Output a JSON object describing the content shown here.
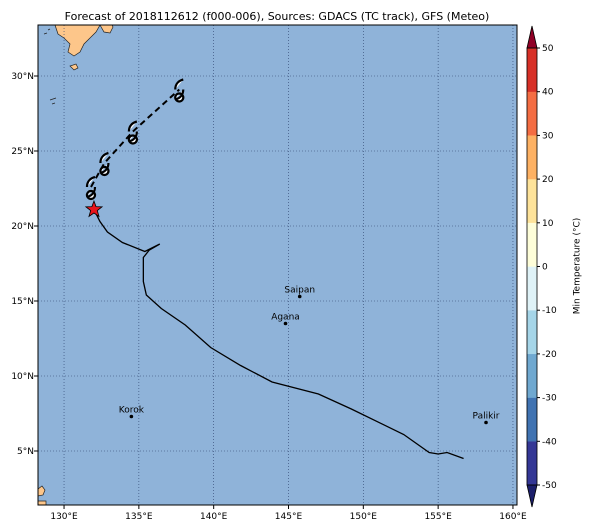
{
  "title": "Forecast of 2018112612 (f000-006), Sources: GDACS (TC track), GFS (Meteo)",
  "map": {
    "lonlim": [
      128.26,
      160.27
    ],
    "latlim": [
      1.4,
      33.4
    ],
    "lonticks": [
      {
        "value": 130,
        "label": "130°E"
      },
      {
        "value": 135,
        "label": "135°E"
      },
      {
        "value": 140,
        "label": "140°E"
      },
      {
        "value": 145,
        "label": "145°E"
      },
      {
        "value": 150,
        "label": "150°E"
      },
      {
        "value": 155,
        "label": "155°E"
      },
      {
        "value": 160,
        "label": "160°E"
      }
    ],
    "latticks": [
      {
        "value": 5,
        "label": "5°N"
      },
      {
        "value": 10,
        "label": "10°N"
      },
      {
        "value": 15,
        "label": "15°N"
      },
      {
        "value": 20,
        "label": "20°N"
      },
      {
        "value": 25,
        "label": "25°N"
      },
      {
        "value": 30,
        "label": "30°N"
      }
    ],
    "ocean_color": "#8fb3d9",
    "land_color": "#fdc68a",
    "grid": true
  },
  "track": {
    "lon": [
      132.0,
      132.4,
      132.9,
      133.9,
      135.4,
      136.4,
      135.7,
      135.3,
      135.3,
      135.5,
      136.5,
      138.1,
      139.8,
      141.8,
      143.9,
      147.0,
      149.2,
      152.7,
      154.4,
      155.0,
      155.6,
      156.7
    ],
    "lat": [
      21.1,
      20.3,
      19.6,
      18.9,
      18.3,
      18.8,
      18.4,
      17.9,
      16.3,
      15.4,
      14.5,
      13.4,
      11.9,
      10.7,
      9.6,
      8.8,
      7.8,
      6.1,
      4.9,
      4.8,
      4.9,
      4.5
    ]
  },
  "current_position": {
    "lon": 132.0,
    "lat": 21.1
  },
  "forecast": {
    "lon": [
      131.8,
      132.7,
      134.6,
      137.7
    ],
    "lat": [
      22.6,
      24.2,
      26.3,
      29.1
    ]
  },
  "places": [
    {
      "name": "Saipan",
      "lon": 145.75,
      "lat": 15.3
    },
    {
      "name": "Agana",
      "lon": 144.8,
      "lat": 13.5
    },
    {
      "name": "Korok",
      "lon": 134.5,
      "lat": 7.3
    },
    {
      "name": "Palikir",
      "lon": 158.2,
      "lat": 6.9
    }
  ],
  "colorbar": {
    "label": "Min Temperature (°C)",
    "lim": [
      -50,
      50
    ],
    "ticks": [
      -50,
      -40,
      -30,
      -20,
      -10,
      0,
      10,
      20,
      30,
      40,
      50
    ],
    "colors": [
      "#343795",
      "#4073b2",
      "#6fa8d0",
      "#a5d5e8",
      "#dff2f7",
      "#fefed9",
      "#fee39a",
      "#fdb163",
      "#f46d43",
      "#d73027"
    ],
    "under_color": "#1c1f6b",
    "over_color": "#8f0026"
  }
}
